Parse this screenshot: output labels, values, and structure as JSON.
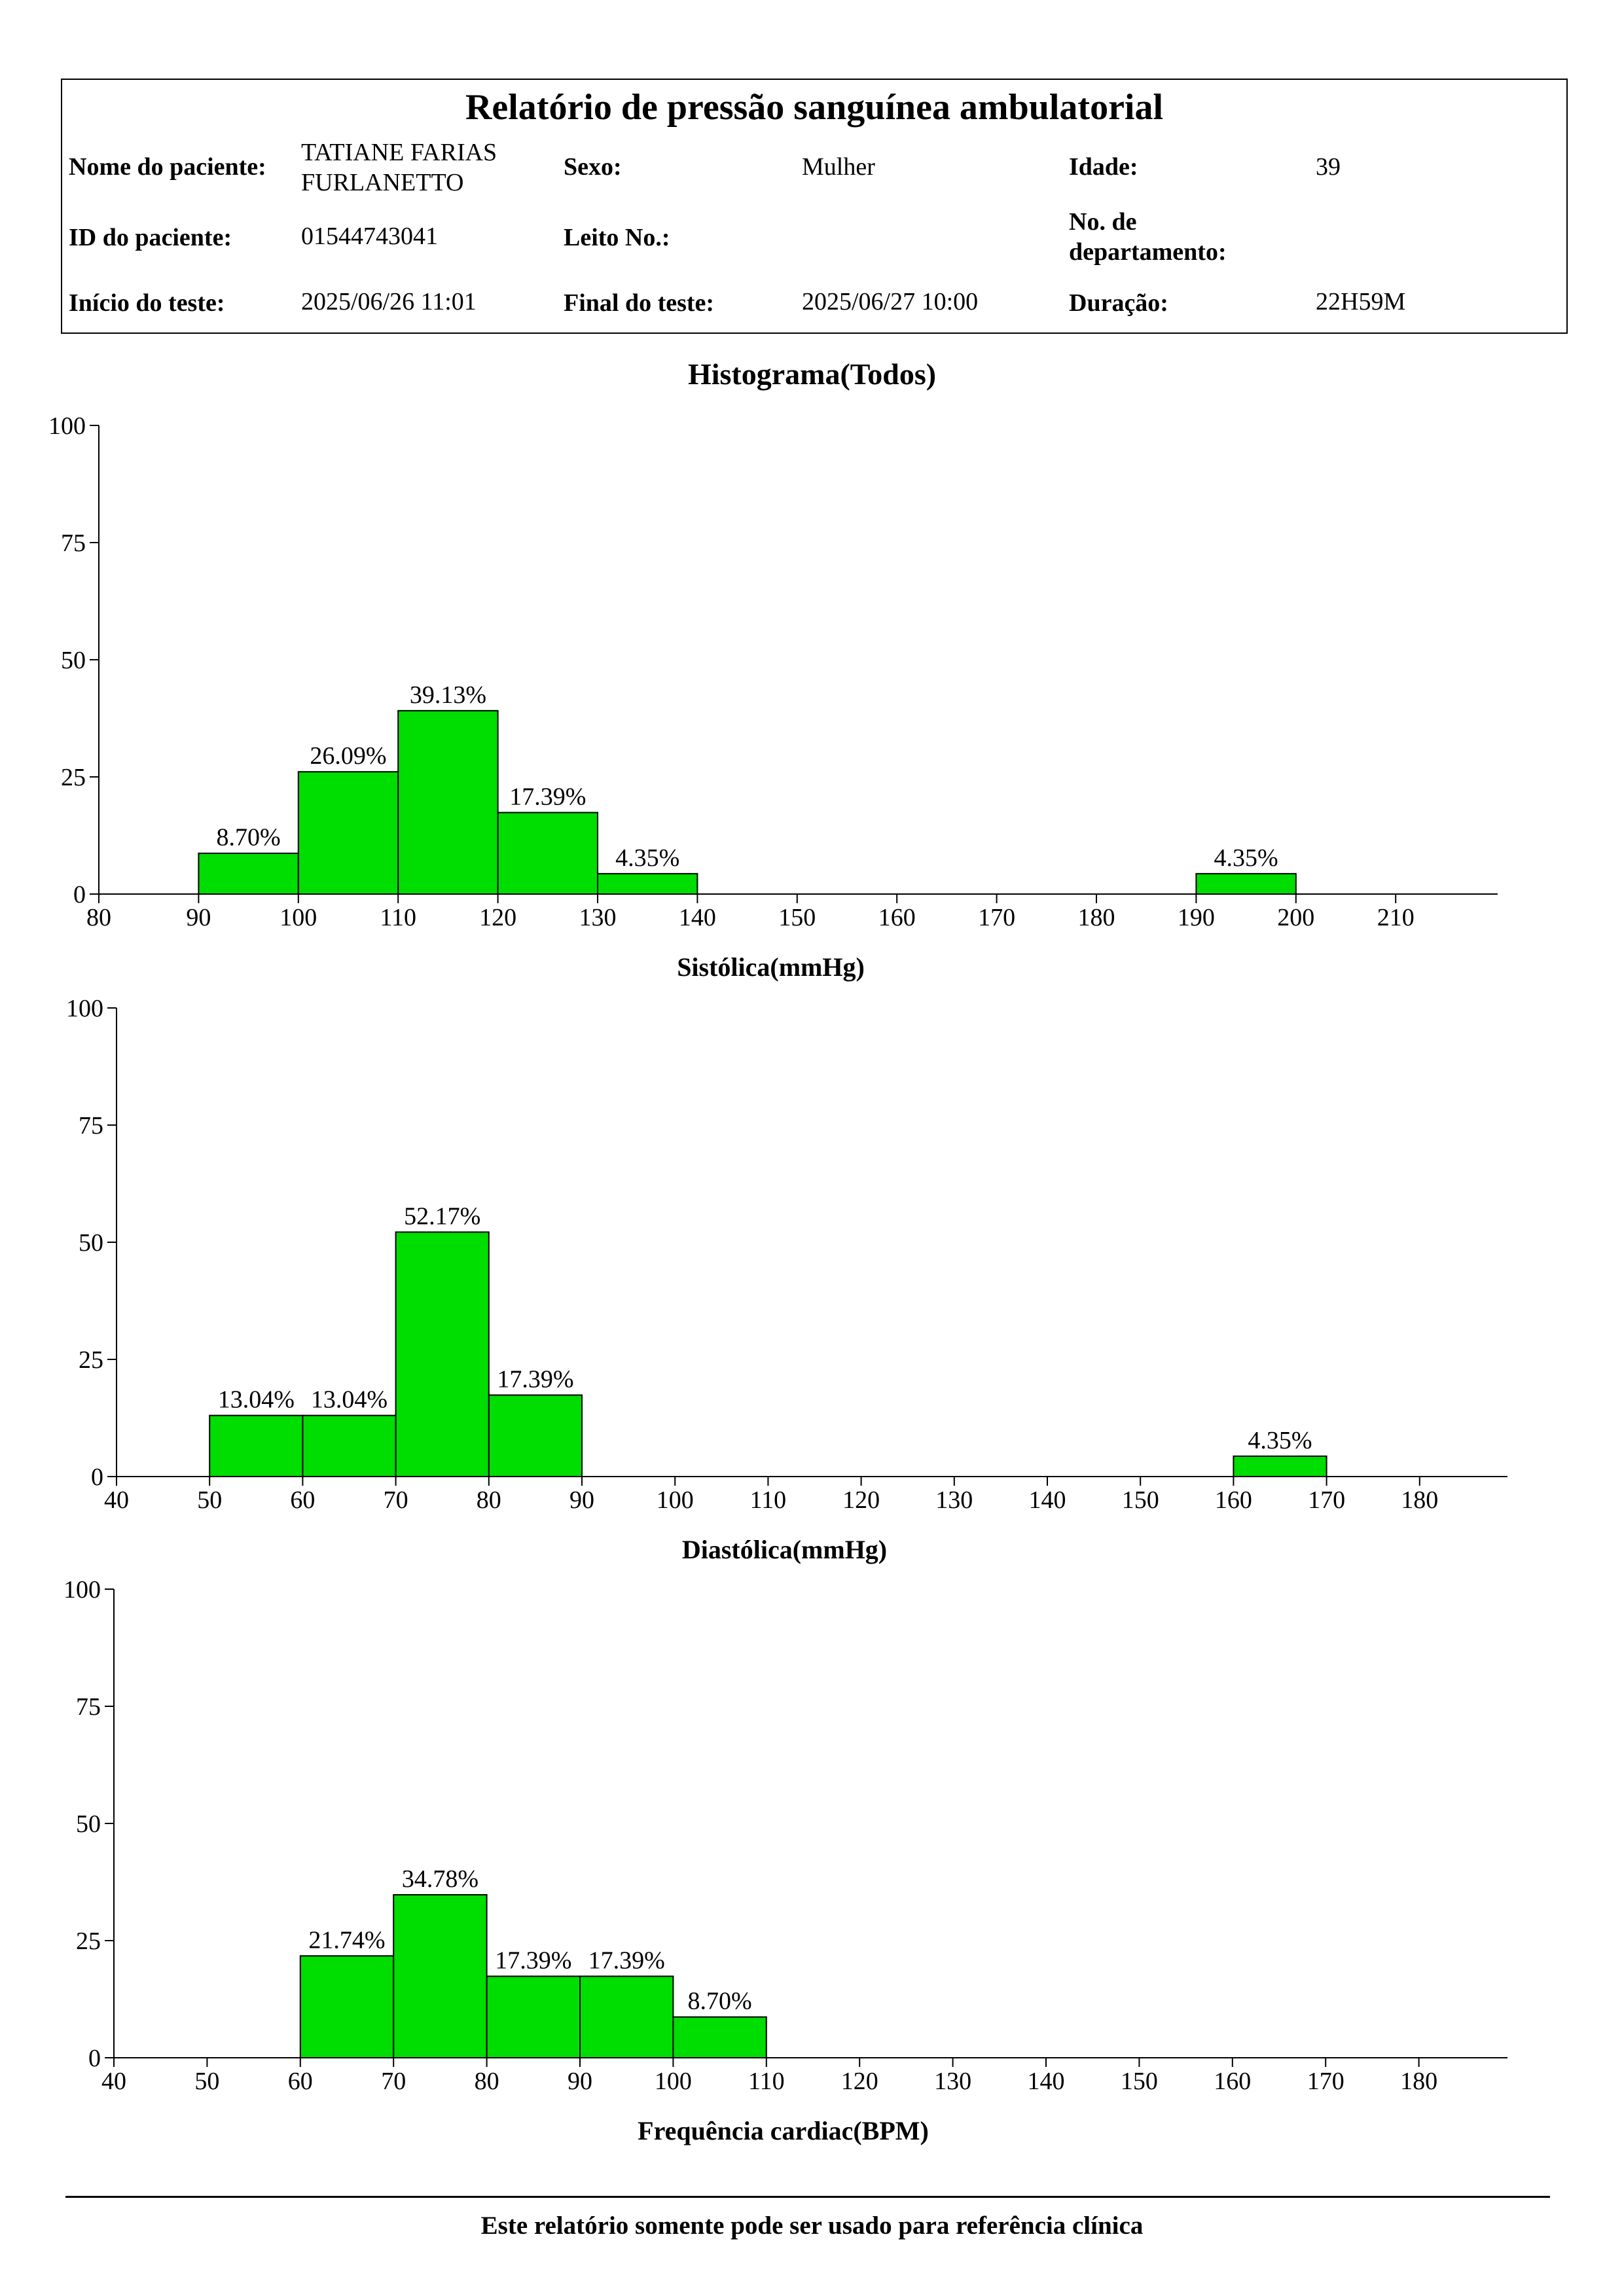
{
  "report": {
    "title": "Relatório de pressão sanguínea ambulatorial",
    "fields": {
      "patient_name": {
        "label": "Nome do paciente:",
        "value": "TATIANE FARIAS FURLANETTO"
      },
      "sex": {
        "label": "Sexo:",
        "value": "Mulher"
      },
      "age": {
        "label": "Idade:",
        "value": "39"
      },
      "patient_id": {
        "label": "ID do paciente:",
        "value": "01544743041"
      },
      "bed": {
        "label": "Leito No.:",
        "value": ""
      },
      "department_no": {
        "label": "No. de departamento:",
        "value": ""
      },
      "test_start": {
        "label": "Início do teste:",
        "value": "2025/06/26 11:01"
      },
      "test_end": {
        "label": "Final do teste:",
        "value": "2025/06/27 10:00"
      },
      "duration": {
        "label": "Duração:",
        "value": "22H59M"
      }
    }
  },
  "section_title": "Histograma(Todos)",
  "footer": "Este relatório somente pode ser usado para referência clínica",
  "colors": {
    "bar_fill": "#00dd00",
    "bar_stroke": "#000000",
    "axis": "#000000"
  },
  "chart_data": [
    {
      "type": "bar",
      "title": "",
      "xlabel": "Sistólica(mmHg)",
      "ylabel": "",
      "xlim": [
        80,
        220
      ],
      "ylim": [
        0,
        100
      ],
      "x_ticks": [
        80,
        90,
        100,
        110,
        120,
        130,
        140,
        150,
        160,
        170,
        180,
        190,
        200,
        210
      ],
      "y_ticks": [
        0,
        25,
        50,
        75,
        100
      ],
      "bins": [
        {
          "start": 90,
          "end": 100,
          "value": 8.7,
          "label": "8.70%"
        },
        {
          "start": 100,
          "end": 110,
          "value": 26.09,
          "label": "26.09%"
        },
        {
          "start": 110,
          "end": 120,
          "value": 39.13,
          "label": "39.13%"
        },
        {
          "start": 120,
          "end": 130,
          "value": 17.39,
          "label": "17.39%"
        },
        {
          "start": 130,
          "end": 140,
          "value": 4.35,
          "label": "4.35%"
        },
        {
          "start": 190,
          "end": 200,
          "value": 4.35,
          "label": "4.35%"
        }
      ]
    },
    {
      "type": "bar",
      "title": "",
      "xlabel": "Diastólica(mmHg)",
      "ylabel": "",
      "xlim": [
        40,
        190
      ],
      "ylim": [
        0,
        100
      ],
      "x_ticks": [
        40,
        50,
        60,
        70,
        80,
        90,
        100,
        110,
        120,
        130,
        140,
        150,
        160,
        170,
        180
      ],
      "y_ticks": [
        0,
        25,
        50,
        75,
        100
      ],
      "bins": [
        {
          "start": 50,
          "end": 60,
          "value": 13.04,
          "label": "13.04%"
        },
        {
          "start": 60,
          "end": 70,
          "value": 13.04,
          "label": "13.04%"
        },
        {
          "start": 70,
          "end": 80,
          "value": 52.17,
          "label": "52.17%"
        },
        {
          "start": 80,
          "end": 90,
          "value": 17.39,
          "label": "17.39%"
        },
        {
          "start": 160,
          "end": 170,
          "value": 4.35,
          "label": "4.35%"
        }
      ]
    },
    {
      "type": "bar",
      "title": "",
      "xlabel": "Frequência cardiac(BPM)",
      "ylabel": "",
      "xlim": [
        40,
        190
      ],
      "ylim": [
        0,
        100
      ],
      "x_ticks": [
        40,
        50,
        60,
        70,
        80,
        90,
        100,
        110,
        120,
        130,
        140,
        150,
        160,
        170,
        180
      ],
      "y_ticks": [
        0,
        25,
        50,
        75,
        100
      ],
      "bins": [
        {
          "start": 60,
          "end": 70,
          "value": 21.74,
          "label": "21.74%"
        },
        {
          "start": 70,
          "end": 80,
          "value": 34.78,
          "label": "34.78%"
        },
        {
          "start": 80,
          "end": 90,
          "value": 17.39,
          "label": "17.39%"
        },
        {
          "start": 90,
          "end": 100,
          "value": 17.39,
          "label": "17.39%"
        },
        {
          "start": 100,
          "end": 110,
          "value": 8.7,
          "label": "8.70%"
        }
      ]
    }
  ]
}
